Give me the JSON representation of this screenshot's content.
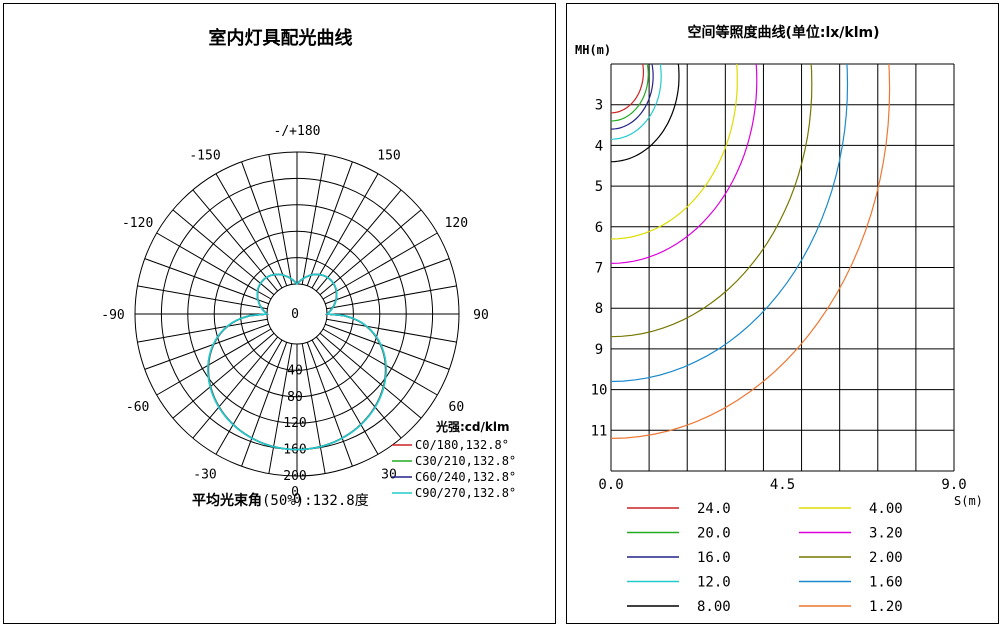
{
  "left_panel": {
    "title": "室内灯具配光曲线",
    "avg_beam_label": "平均光束角",
    "avg_beam_value": "(50%):132.8度",
    "intensity_unit": "光强:cd/klm"
  },
  "right_panel": {
    "title": "空间等照度曲线(单位:lx/klm)",
    "y_axis_label": "MH(m)",
    "x_axis_label": "S(m)"
  },
  "chart_data": [
    {
      "type": "polar",
      "title": "室内灯具配光曲线",
      "angle_labels": [
        "-/+180",
        "150",
        "120",
        "90",
        "60",
        "30",
        "0",
        "-30",
        "-60",
        "-90",
        "-120",
        "-150"
      ],
      "radial_ticks": [
        0,
        40,
        80,
        120,
        160,
        200
      ],
      "radial_max": 200,
      "series": [
        {
          "name": "C0/180,132.8°",
          "color": "#cc2222",
          "peak": 160,
          "up_peak": 30
        },
        {
          "name": "C30/210,132.8°",
          "color": "#22aa22",
          "peak": 160,
          "up_peak": 30
        },
        {
          "name": "C60/240,132.8°",
          "color": "#222288",
          "peak": 160,
          "up_peak": 30
        },
        {
          "name": "C90/270,132.8°",
          "color": "#22cccc",
          "peak": 160,
          "up_peak": 30
        }
      ],
      "annotation": "平均光束角(50%):132.8度"
    },
    {
      "type": "isolux",
      "title": "空间等照度曲线(单位:lx/klm)",
      "xlabel": "S(m)",
      "ylabel": "MH(m)",
      "xlim": [
        0,
        9.0
      ],
      "x_tick_labels": [
        "0.0",
        "4.5",
        "9.0"
      ],
      "y_ticks": [
        3,
        4,
        5,
        6,
        7,
        8,
        9,
        10,
        11
      ],
      "ylim": [
        2.0,
        12.0
      ],
      "series": [
        {
          "name": "24.0",
          "color": "#cc2222",
          "center_y": 2.2,
          "radius": 1.0
        },
        {
          "name": "20.0",
          "color": "#22aa22",
          "center_y": 2.25,
          "radius": 1.15
        },
        {
          "name": "16.0",
          "color": "#222288",
          "center_y": 2.3,
          "radius": 1.3
        },
        {
          "name": "12.0",
          "color": "#22cccc",
          "center_y": 2.3,
          "radius": 1.55
        },
        {
          "name": "8.00",
          "color": "#000000",
          "center_y": 2.3,
          "radius": 2.1
        },
        {
          "name": "4.00",
          "color": "#dddd00",
          "center_y": 2.4,
          "radius": 3.9
        },
        {
          "name": "3.20",
          "color": "#dd00dd",
          "center_y": 2.4,
          "radius": 4.5
        },
        {
          "name": "2.00",
          "color": "#777700",
          "center_y": 2.5,
          "radius": 6.2
        },
        {
          "name": "1.60",
          "color": "#1a8acc",
          "center_y": 2.5,
          "radius": 7.3
        },
        {
          "name": "1.20",
          "color": "#ee7733",
          "center_y": 2.6,
          "radius": 8.6
        }
      ]
    }
  ]
}
